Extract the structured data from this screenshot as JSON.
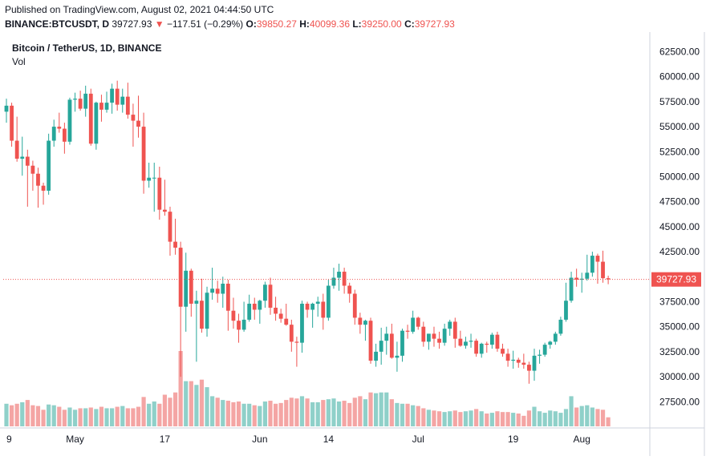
{
  "header": {
    "published": "Published on TradingView.com, August 02, 2021 04:44:50 UTC",
    "symbol": "BINANCE:BTCUSDT, D",
    "last": "39727.93",
    "arrow": "▼",
    "change": "−117.51 (−0.29%)",
    "o_label": "O:",
    "o_value": "39850.27",
    "h_label": "H:",
    "h_value": "40099.36",
    "l_label": "L:",
    "l_value": "39250.00",
    "c_label": "C:",
    "c_value": "39727.93"
  },
  "legend": {
    "title": "Bitcoin / TetherUS, 1D, BINANCE",
    "volume_label": "Vol"
  },
  "colors": {
    "up": "#26a69a",
    "down": "#ef5350",
    "up_volume": "#8fd0c9",
    "down_volume": "#f4a5a4",
    "last_price_line": "#ef5350",
    "grid_border": "#e0e3eb"
  },
  "chart_data": {
    "type": "candlestick",
    "yaxis_ticks": [
      62500,
      60000,
      57500,
      55000,
      52500,
      50000,
      47500,
      45000,
      42500,
      37500,
      35000,
      32500,
      30000,
      27500
    ],
    "ylim": [
      26000,
      63500
    ],
    "last_price_label": "39727.93",
    "last_price": 39727.93,
    "x_tick_labels": [
      {
        "index": 0,
        "label": "9"
      },
      {
        "index": 13,
        "label": "May"
      },
      {
        "index": 30,
        "label": "17"
      },
      {
        "index": 48,
        "label": "Jun"
      },
      {
        "index": 61,
        "label": "14"
      },
      {
        "index": 78,
        "label": "Jul"
      },
      {
        "index": 96,
        "label": "19"
      },
      {
        "index": 109,
        "label": "Aug"
      }
    ],
    "candles": [
      {
        "o": 56500,
        "h": 57800,
        "l": 55400,
        "c": 57100
      },
      {
        "o": 57100,
        "h": 57400,
        "l": 53000,
        "c": 53600
      },
      {
        "o": 53600,
        "h": 56000,
        "l": 51500,
        "c": 51800
      },
      {
        "o": 51800,
        "h": 54000,
        "l": 50100,
        "c": 52000
      },
      {
        "o": 52000,
        "h": 52700,
        "l": 47000,
        "c": 51100
      },
      {
        "o": 51100,
        "h": 51600,
        "l": 48600,
        "c": 50300
      },
      {
        "o": 50300,
        "h": 50900,
        "l": 46900,
        "c": 49100
      },
      {
        "o": 49100,
        "h": 49400,
        "l": 47200,
        "c": 48600
      },
      {
        "o": 48600,
        "h": 54300,
        "l": 48200,
        "c": 53600
      },
      {
        "o": 53600,
        "h": 55700,
        "l": 53000,
        "c": 55000
      },
      {
        "o": 55000,
        "h": 56400,
        "l": 54400,
        "c": 54800
      },
      {
        "o": 54800,
        "h": 55400,
        "l": 52300,
        "c": 53500
      },
      {
        "o": 53500,
        "h": 57900,
        "l": 53200,
        "c": 57700
      },
      {
        "o": 57700,
        "h": 58400,
        "l": 56500,
        "c": 57800
      },
      {
        "o": 57800,
        "h": 58600,
        "l": 56600,
        "c": 56800
      },
      {
        "o": 56800,
        "h": 59100,
        "l": 56000,
        "c": 58300
      },
      {
        "o": 58300,
        "h": 58800,
        "l": 53100,
        "c": 53300
      },
      {
        "o": 53300,
        "h": 57500,
        "l": 52700,
        "c": 57400
      },
      {
        "o": 57400,
        "h": 58200,
        "l": 55500,
        "c": 56700
      },
      {
        "o": 56700,
        "h": 58500,
        "l": 56400,
        "c": 57400
      },
      {
        "o": 57400,
        "h": 59300,
        "l": 56300,
        "c": 58800
      },
      {
        "o": 58800,
        "h": 59600,
        "l": 56600,
        "c": 57200
      },
      {
        "o": 57200,
        "h": 58800,
        "l": 56400,
        "c": 58000
      },
      {
        "o": 58000,
        "h": 59400,
        "l": 55800,
        "c": 56200
      },
      {
        "o": 56200,
        "h": 57300,
        "l": 53000,
        "c": 55600
      },
      {
        "o": 55600,
        "h": 58100,
        "l": 53900,
        "c": 55000
      },
      {
        "o": 55000,
        "h": 56400,
        "l": 48300,
        "c": 49600
      },
      {
        "o": 49600,
        "h": 51400,
        "l": 48900,
        "c": 49900
      },
      {
        "o": 49900,
        "h": 51400,
        "l": 46500,
        "c": 49900
      },
      {
        "o": 49900,
        "h": 51000,
        "l": 45700,
        "c": 46700
      },
      {
        "o": 46700,
        "h": 49700,
        "l": 46100,
        "c": 46500
      },
      {
        "o": 46500,
        "h": 47000,
        "l": 42100,
        "c": 43500
      },
      {
        "o": 43500,
        "h": 45800,
        "l": 42200,
        "c": 42900
      },
      {
        "o": 42900,
        "h": 43500,
        "l": 30000,
        "c": 37000
      },
      {
        "o": 37000,
        "h": 42400,
        "l": 34500,
        "c": 40600
      },
      {
        "o": 40600,
        "h": 40800,
        "l": 36000,
        "c": 37300
      },
      {
        "o": 37300,
        "h": 38600,
        "l": 31500,
        "c": 37600
      },
      {
        "o": 37600,
        "h": 39800,
        "l": 34400,
        "c": 34800
      },
      {
        "o": 34800,
        "h": 39000,
        "l": 34000,
        "c": 38400
      },
      {
        "o": 38400,
        "h": 40900,
        "l": 37700,
        "c": 38800
      },
      {
        "o": 38800,
        "h": 39600,
        "l": 37400,
        "c": 38300
      },
      {
        "o": 38300,
        "h": 40000,
        "l": 36900,
        "c": 39300
      },
      {
        "o": 39300,
        "h": 39700,
        "l": 34600,
        "c": 36600
      },
      {
        "o": 36600,
        "h": 37900,
        "l": 34800,
        "c": 35600
      },
      {
        "o": 35600,
        "h": 36300,
        "l": 33400,
        "c": 34700
      },
      {
        "o": 34700,
        "h": 37500,
        "l": 34500,
        "c": 35700
      },
      {
        "o": 35700,
        "h": 38200,
        "l": 35500,
        "c": 37300
      },
      {
        "o": 37300,
        "h": 37900,
        "l": 35700,
        "c": 36700
      },
      {
        "o": 36700,
        "h": 37700,
        "l": 35300,
        "c": 37600
      },
      {
        "o": 37600,
        "h": 39500,
        "l": 36900,
        "c": 39200
      },
      {
        "o": 39200,
        "h": 39900,
        "l": 36200,
        "c": 36900
      },
      {
        "o": 36900,
        "h": 38000,
        "l": 35600,
        "c": 36300
      },
      {
        "o": 36300,
        "h": 36800,
        "l": 35400,
        "c": 35800
      },
      {
        "o": 35800,
        "h": 37300,
        "l": 35100,
        "c": 35200
      },
      {
        "o": 35200,
        "h": 35700,
        "l": 32500,
        "c": 33500
      },
      {
        "o": 33500,
        "h": 34000,
        "l": 31000,
        "c": 33400
      },
      {
        "o": 33400,
        "h": 37600,
        "l": 32400,
        "c": 37300
      },
      {
        "o": 37300,
        "h": 37500,
        "l": 35900,
        "c": 36700
      },
      {
        "o": 36700,
        "h": 37400,
        "l": 34900,
        "c": 37300
      },
      {
        "o": 37300,
        "h": 38000,
        "l": 36000,
        "c": 37500
      },
      {
        "o": 37500,
        "h": 38300,
        "l": 34700,
        "c": 35900
      },
      {
        "o": 35900,
        "h": 39700,
        "l": 35600,
        "c": 39100
      },
      {
        "o": 39100,
        "h": 40900,
        "l": 38800,
        "c": 39900
      },
      {
        "o": 39900,
        "h": 41300,
        "l": 38600,
        "c": 40500
      },
      {
        "o": 40500,
        "h": 40900,
        "l": 38300,
        "c": 39100
      },
      {
        "o": 39100,
        "h": 39400,
        "l": 37400,
        "c": 38300
      },
      {
        "o": 38300,
        "h": 38700,
        "l": 35200,
        "c": 35900
      },
      {
        "o": 35900,
        "h": 36400,
        "l": 34300,
        "c": 35200
      },
      {
        "o": 35200,
        "h": 35700,
        "l": 33600,
        "c": 35600
      },
      {
        "o": 35600,
        "h": 35900,
        "l": 31300,
        "c": 31600
      },
      {
        "o": 31600,
        "h": 33300,
        "l": 31000,
        "c": 32500
      },
      {
        "o": 32500,
        "h": 34900,
        "l": 31200,
        "c": 33600
      },
      {
        "o": 33600,
        "h": 35000,
        "l": 32200,
        "c": 34300
      },
      {
        "o": 34300,
        "h": 35300,
        "l": 31800,
        "c": 31900
      },
      {
        "o": 31900,
        "h": 33500,
        "l": 30500,
        "c": 32100
      },
      {
        "o": 32100,
        "h": 34800,
        "l": 31500,
        "c": 34600
      },
      {
        "o": 34600,
        "h": 35200,
        "l": 33800,
        "c": 34500
      },
      {
        "o": 34500,
        "h": 36600,
        "l": 34300,
        "c": 35900
      },
      {
        "o": 35900,
        "h": 36000,
        "l": 34700,
        "c": 35000
      },
      {
        "o": 35000,
        "h": 35500,
        "l": 33000,
        "c": 33500
      },
      {
        "o": 33500,
        "h": 34300,
        "l": 32700,
        "c": 34300
      },
      {
        "o": 34300,
        "h": 35000,
        "l": 33000,
        "c": 33800
      },
      {
        "o": 33800,
        "h": 34500,
        "l": 32800,
        "c": 33400
      },
      {
        "o": 33400,
        "h": 35300,
        "l": 33100,
        "c": 34800
      },
      {
        "o": 34800,
        "h": 35700,
        "l": 34100,
        "c": 35500
      },
      {
        "o": 35500,
        "h": 35900,
        "l": 32900,
        "c": 33800
      },
      {
        "o": 33800,
        "h": 34600,
        "l": 33000,
        "c": 33100
      },
      {
        "o": 33100,
        "h": 34000,
        "l": 32800,
        "c": 33500
      },
      {
        "o": 33500,
        "h": 34300,
        "l": 32900,
        "c": 33600
      },
      {
        "o": 33600,
        "h": 33800,
        "l": 32000,
        "c": 32300
      },
      {
        "o": 32300,
        "h": 33400,
        "l": 31900,
        "c": 33300
      },
      {
        "o": 33300,
        "h": 33500,
        "l": 32400,
        "c": 33200
      },
      {
        "o": 33200,
        "h": 34400,
        "l": 32800,
        "c": 34200
      },
      {
        "o": 34200,
        "h": 34500,
        "l": 32500,
        "c": 32800
      },
      {
        "o": 32800,
        "h": 33300,
        "l": 32000,
        "c": 32300
      },
      {
        "o": 32300,
        "h": 32800,
        "l": 31000,
        "c": 31600
      },
      {
        "o": 31600,
        "h": 32600,
        "l": 30800,
        "c": 31700
      },
      {
        "o": 31700,
        "h": 31900,
        "l": 30900,
        "c": 31400
      },
      {
        "o": 31400,
        "h": 32300,
        "l": 30800,
        "c": 31200
      },
      {
        "o": 31200,
        "h": 31500,
        "l": 29300,
        "c": 30600
      },
      {
        "o": 30600,
        "h": 32800,
        "l": 29600,
        "c": 32100
      },
      {
        "o": 32100,
        "h": 32700,
        "l": 31300,
        "c": 32200
      },
      {
        "o": 32200,
        "h": 33400,
        "l": 32000,
        "c": 33200
      },
      {
        "o": 33200,
        "h": 33600,
        "l": 32800,
        "c": 33500
      },
      {
        "o": 33500,
        "h": 34500,
        "l": 33200,
        "c": 34300
      },
      {
        "o": 34300,
        "h": 36000,
        "l": 34100,
        "c": 35700
      },
      {
        "o": 35700,
        "h": 39400,
        "l": 35500,
        "c": 37600
      },
      {
        "o": 37600,
        "h": 40500,
        "l": 37400,
        "c": 39900
      },
      {
        "o": 39900,
        "h": 40800,
        "l": 39000,
        "c": 39700
      },
      {
        "o": 39700,
        "h": 40400,
        "l": 38400,
        "c": 39800
      },
      {
        "o": 39800,
        "h": 42200,
        "l": 39600,
        "c": 40400
      },
      {
        "o": 40400,
        "h": 42500,
        "l": 40000,
        "c": 42100
      },
      {
        "o": 42100,
        "h": 42300,
        "l": 39300,
        "c": 41500
      },
      {
        "o": 41500,
        "h": 42600,
        "l": 39400,
        "c": 39850
      },
      {
        "o": 39850.27,
        "h": 40099.36,
        "l": 39250,
        "c": 39727.93
      }
    ],
    "volume": [
      0.3,
      0.28,
      0.3,
      0.32,
      0.35,
      0.28,
      0.27,
      0.22,
      0.29,
      0.28,
      0.26,
      0.22,
      0.25,
      0.22,
      0.24,
      0.24,
      0.25,
      0.23,
      0.26,
      0.24,
      0.24,
      0.26,
      0.27,
      0.24,
      0.24,
      0.26,
      0.39,
      0.3,
      0.33,
      0.3,
      0.42,
      0.38,
      0.45,
      1.0,
      0.6,
      0.6,
      0.55,
      0.62,
      0.52,
      0.4,
      0.38,
      0.35,
      0.34,
      0.32,
      0.33,
      0.3,
      0.3,
      0.28,
      0.27,
      0.33,
      0.34,
      0.3,
      0.31,
      0.35,
      0.38,
      0.37,
      0.4,
      0.37,
      0.32,
      0.32,
      0.35,
      0.36,
      0.37,
      0.33,
      0.34,
      0.31,
      0.38,
      0.4,
      0.36,
      0.45,
      0.44,
      0.45,
      0.45,
      0.36,
      0.31,
      0.3,
      0.3,
      0.28,
      0.27,
      0.24,
      0.22,
      0.21,
      0.2,
      0.19,
      0.2,
      0.21,
      0.19,
      0.2,
      0.21,
      0.23,
      0.2,
      0.17,
      0.18,
      0.2,
      0.19,
      0.19,
      0.18,
      0.17,
      0.14,
      0.21,
      0.26,
      0.2,
      0.18,
      0.21,
      0.2,
      0.18,
      0.23,
      0.4,
      0.25,
      0.27,
      0.28,
      0.25,
      0.23,
      0.22,
      0.12
    ]
  }
}
